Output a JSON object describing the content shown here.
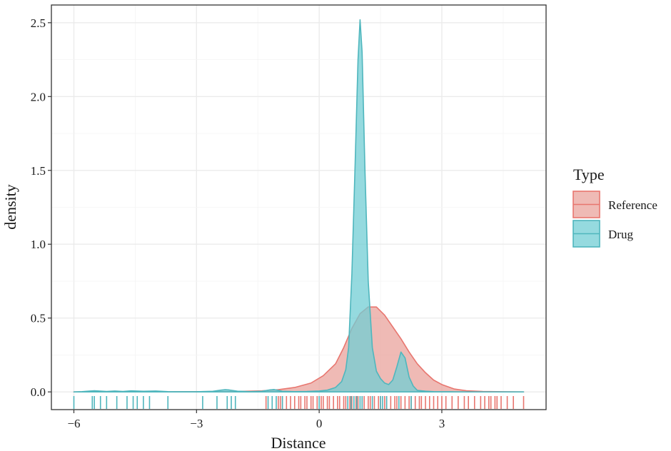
{
  "chart_data": {
    "type": "area",
    "xlabel": "Distance",
    "ylabel": "density",
    "xlim": [
      -6.55,
      5.55
    ],
    "ylim": [
      -0.12,
      2.62
    ],
    "x_ticks": [
      -6,
      -3,
      0,
      3
    ],
    "x_tick_labels": [
      "−6",
      "−3",
      "0",
      "3"
    ],
    "y_ticks": [
      0,
      0.5,
      1,
      1.5,
      2,
      2.5
    ],
    "y_tick_labels": [
      "0.0",
      "0.5",
      "1.0",
      "1.5",
      "2.0",
      "2.5"
    ],
    "grid": true,
    "legend": {
      "title": "Type",
      "position": "right",
      "entries": [
        "Reference",
        "Drug"
      ]
    },
    "series": [
      {
        "name": "Reference",
        "color": "#e8766f",
        "fill": "#e9a39c",
        "x": [
          -6.0,
          -4.0,
          -2.0,
          -1.4,
          -1.0,
          -0.6,
          -0.2,
          0.1,
          0.4,
          0.6,
          0.8,
          1.0,
          1.2,
          1.4,
          1.6,
          1.8,
          2.0,
          2.2,
          2.4,
          2.6,
          2.8,
          3.0,
          3.3,
          3.6,
          4.0,
          4.5,
          5.0
        ],
        "y": [
          0.0,
          0.0,
          0.003,
          0.007,
          0.015,
          0.03,
          0.06,
          0.11,
          0.19,
          0.3,
          0.43,
          0.53,
          0.575,
          0.575,
          0.52,
          0.44,
          0.36,
          0.27,
          0.19,
          0.13,
          0.08,
          0.05,
          0.02,
          0.008,
          0.003,
          0.001,
          0.0
        ]
      },
      {
        "name": "Drug",
        "color": "#4fb6bd",
        "fill": "#72ced4",
        "x": [
          -6.0,
          -5.8,
          -5.5,
          -5.2,
          -5.0,
          -4.8,
          -4.6,
          -4.3,
          -4.0,
          -3.7,
          -3.4,
          -3.0,
          -2.6,
          -2.4,
          -2.3,
          -2.2,
          -2.0,
          -1.7,
          -1.4,
          -1.2,
          -1.1,
          -0.9,
          -0.6,
          -0.3,
          0.0,
          0.2,
          0.4,
          0.55,
          0.65,
          0.72,
          0.8,
          0.88,
          0.95,
          1.0,
          1.05,
          1.12,
          1.2,
          1.3,
          1.4,
          1.5,
          1.6,
          1.7,
          1.8,
          1.9,
          2.0,
          2.1,
          2.2,
          2.3,
          2.4,
          2.6,
          2.8,
          3.2,
          3.6,
          4.0,
          4.5,
          5.0
        ],
        "y": [
          0.0,
          0.002,
          0.008,
          0.003,
          0.006,
          0.003,
          0.007,
          0.004,
          0.006,
          0.002,
          0.001,
          0.001,
          0.004,
          0.012,
          0.015,
          0.013,
          0.005,
          0.002,
          0.004,
          0.014,
          0.016,
          0.004,
          0.002,
          0.003,
          0.006,
          0.012,
          0.03,
          0.07,
          0.15,
          0.3,
          0.8,
          1.55,
          2.25,
          2.52,
          2.3,
          1.5,
          0.75,
          0.3,
          0.14,
          0.09,
          0.06,
          0.05,
          0.08,
          0.17,
          0.27,
          0.23,
          0.1,
          0.04,
          0.01,
          0.005,
          0.002,
          0.001,
          0.0,
          0.0,
          0.0,
          0.0
        ]
      }
    ],
    "rug": {
      "Reference": [
        -1.3,
        -1.0,
        -0.95,
        -0.9,
        -0.8,
        -0.7,
        -0.6,
        -0.5,
        -0.45,
        -0.35,
        -0.3,
        -0.2,
        -0.15,
        -0.05,
        0.05,
        0.1,
        0.2,
        0.25,
        0.35,
        0.45,
        0.5,
        0.6,
        0.65,
        0.75,
        0.8,
        0.9,
        0.95,
        1.05,
        1.1,
        1.2,
        1.25,
        1.35,
        1.45,
        1.5,
        1.6,
        1.65,
        1.75,
        1.85,
        1.9,
        2.0,
        2.1,
        2.2,
        2.25,
        2.35,
        2.45,
        2.5,
        2.6,
        2.7,
        2.8,
        2.9,
        3.0,
        3.1,
        3.25,
        3.4,
        3.55,
        3.65,
        3.8,
        3.95,
        4.05,
        4.15,
        4.2,
        4.3,
        4.35,
        4.45,
        4.6,
        4.75,
        5.0
      ],
      "Drug": [
        -6.0,
        -5.55,
        -5.5,
        -5.35,
        -5.2,
        -4.95,
        -4.7,
        -4.55,
        -4.45,
        -4.3,
        -4.15,
        -3.7,
        -2.85,
        -2.5,
        -2.25,
        -2.15,
        -2.05,
        -1.25,
        -1.15,
        -1.05,
        -0.9,
        0.0,
        0.7,
        0.78,
        0.85,
        0.92,
        1.0,
        1.05,
        1.3,
        1.5,
        1.55,
        1.65,
        1.95,
        2.25
      ]
    }
  }
}
